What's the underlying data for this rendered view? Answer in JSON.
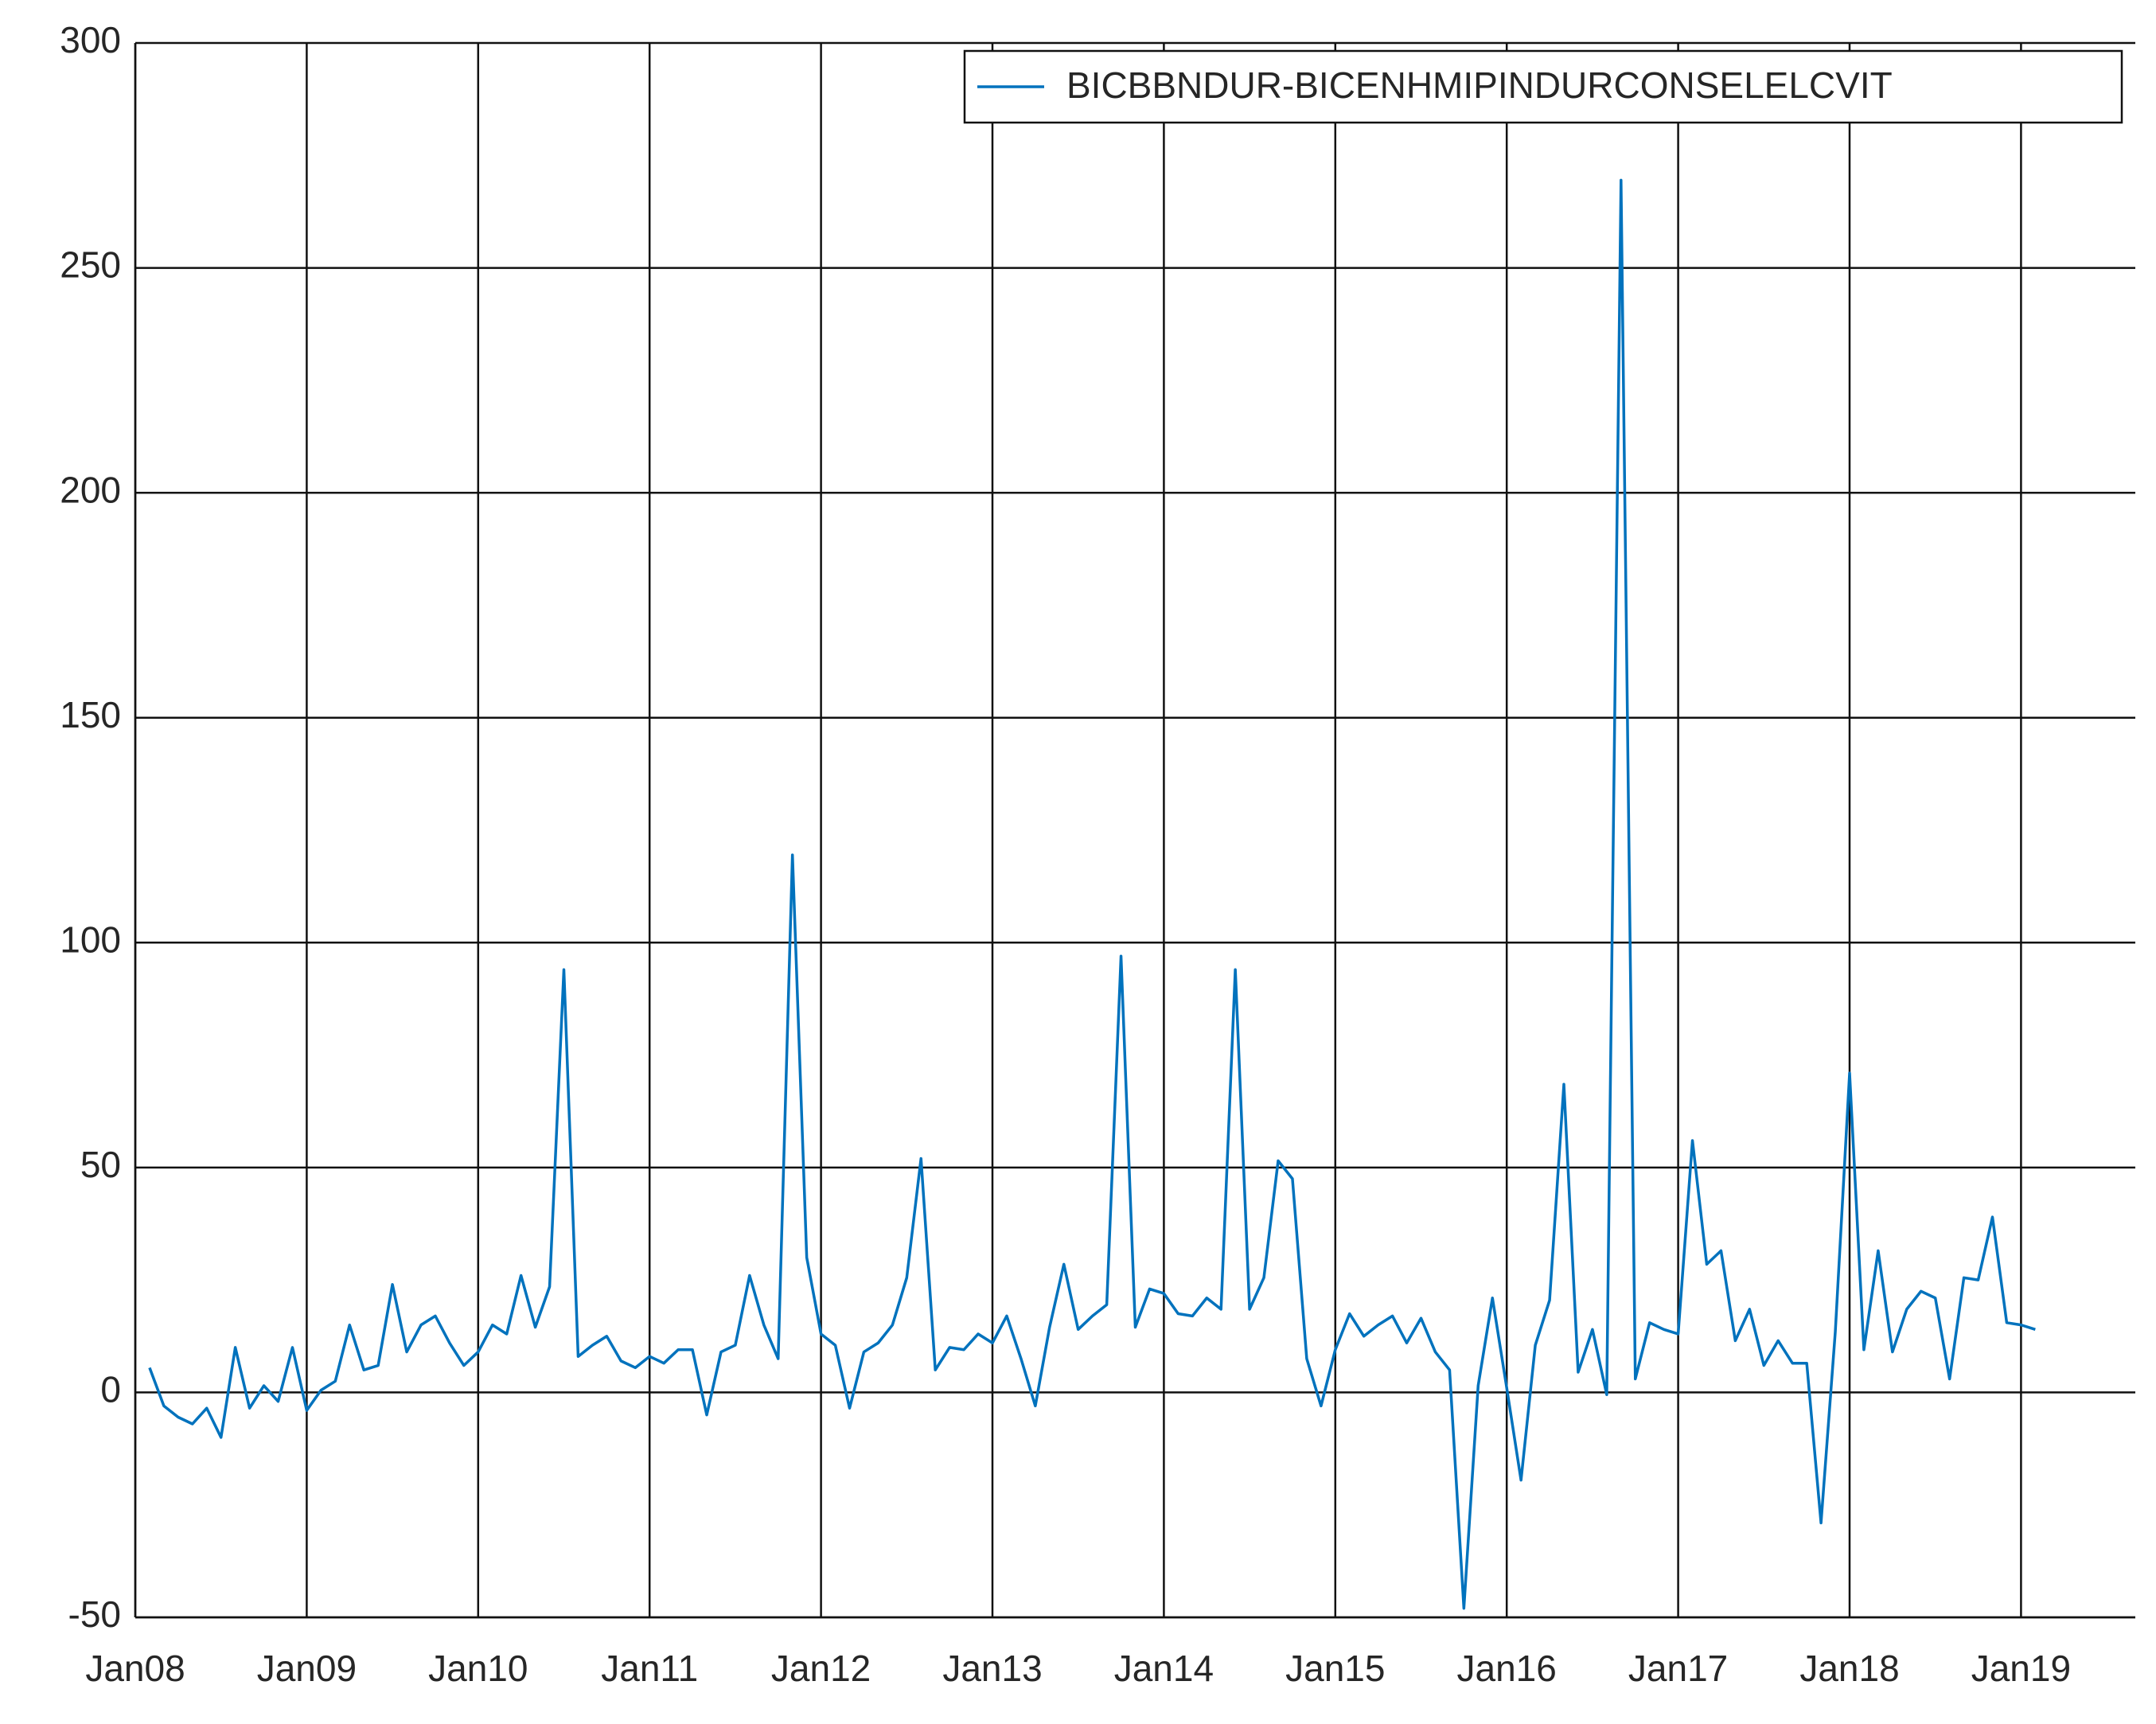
{
  "chart_data": {
    "type": "line",
    "x": [
      "2008-02",
      "2008-03",
      "2008-04",
      "2008-05",
      "2008-06",
      "2008-07",
      "2008-08",
      "2008-09",
      "2008-10",
      "2008-11",
      "2008-12",
      "2009-01",
      "2009-02",
      "2009-03",
      "2009-04",
      "2009-05",
      "2009-06",
      "2009-07",
      "2009-08",
      "2009-09",
      "2009-10",
      "2009-11",
      "2009-12",
      "2010-01",
      "2010-02",
      "2010-03",
      "2010-04",
      "2010-05",
      "2010-06",
      "2010-07",
      "2010-08",
      "2010-09",
      "2010-10",
      "2010-11",
      "2010-12",
      "2011-01",
      "2011-02",
      "2011-03",
      "2011-04",
      "2011-05",
      "2011-06",
      "2011-07",
      "2011-08",
      "2011-09",
      "2011-10",
      "2011-11",
      "2011-12",
      "2012-01",
      "2012-02",
      "2012-03",
      "2012-04",
      "2012-05",
      "2012-06",
      "2012-07",
      "2012-08",
      "2012-09",
      "2012-10",
      "2012-11",
      "2012-12",
      "2013-01",
      "2013-02",
      "2013-03",
      "2013-04",
      "2013-05",
      "2013-06",
      "2013-07",
      "2013-08",
      "2013-09",
      "2013-10",
      "2013-11",
      "2013-12",
      "2014-01",
      "2014-02",
      "2014-03",
      "2014-04",
      "2014-05",
      "2014-06",
      "2014-07",
      "2014-08",
      "2014-09",
      "2014-10",
      "2014-11",
      "2014-12",
      "2015-01",
      "2015-02",
      "2015-03",
      "2015-04",
      "2015-05",
      "2015-06",
      "2015-07",
      "2015-08",
      "2015-09",
      "2015-10",
      "2015-11",
      "2015-12",
      "2016-01",
      "2016-02",
      "2016-03",
      "2016-04",
      "2016-05",
      "2016-06",
      "2016-07",
      "2016-08",
      "2016-09",
      "2016-10",
      "2016-11",
      "2016-12",
      "2017-01",
      "2017-02",
      "2017-03",
      "2017-04",
      "2017-05",
      "2017-06",
      "2017-07",
      "2017-08",
      "2017-09",
      "2017-10",
      "2017-11",
      "2017-12",
      "2018-01",
      "2018-02",
      "2018-03",
      "2018-04",
      "2018-05",
      "2018-06",
      "2018-07",
      "2018-08",
      "2018-09",
      "2018-10",
      "2018-11",
      "2018-12",
      "2019-01",
      "2019-02"
    ],
    "series": [
      {
        "name": "BICBBNDUR-BICENHMIPINDURCONSELELCVIT",
        "color": "#0072bd",
        "values": [
          5.5,
          -3,
          -5.5,
          -7,
          -3.5,
          -10,
          10,
          -3.5,
          1.5,
          -2,
          10,
          -4,
          0.5,
          2.5,
          15,
          5,
          6,
          24,
          9,
          15,
          17,
          11,
          6,
          9,
          15,
          13,
          26,
          14.5,
          23.5,
          94,
          8,
          10.5,
          12.5,
          7,
          5.5,
          8,
          6.5,
          9.5,
          9.5,
          -5,
          9,
          10.5,
          26,
          15,
          7.5,
          119.5,
          30,
          13,
          10.5,
          -3.5,
          9,
          11,
          15,
          25.5,
          52,
          5,
          10,
          9.5,
          13,
          11,
          17,
          7.5,
          -3,
          14.5,
          28.5,
          14,
          17,
          19.5,
          97,
          14.5,
          23,
          22,
          17.5,
          17,
          21,
          18.5,
          94,
          18.5,
          25.5,
          51.5,
          47.5,
          7.5,
          -3,
          9.5,
          17.5,
          12.5,
          15,
          17,
          11,
          16.5,
          9,
          5,
          -48,
          1.5,
          21,
          1,
          -19.5,
          10.5,
          20.5,
          68.5,
          4.5,
          14,
          -0.5,
          269.5,
          3,
          15.5,
          14,
          13,
          56,
          28.5,
          31.5,
          11.5,
          18.5,
          6,
          11.5,
          6.5,
          6.5,
          -29,
          13.5,
          71,
          9.5,
          31.5,
          9,
          18.5,
          22.5,
          21,
          3,
          25.5,
          25,
          39,
          15.5,
          15,
          14
        ]
      }
    ],
    "xlim": [
      "2008-01",
      "2019-09"
    ],
    "xticks": [
      {
        "value": "2008-01",
        "label": "Jan08"
      },
      {
        "value": "2009-01",
        "label": "Jan09"
      },
      {
        "value": "2010-01",
        "label": "Jan10"
      },
      {
        "value": "2011-01",
        "label": "Jan11"
      },
      {
        "value": "2012-01",
        "label": "Jan12"
      },
      {
        "value": "2013-01",
        "label": "Jan13"
      },
      {
        "value": "2014-01",
        "label": "Jan14"
      },
      {
        "value": "2015-01",
        "label": "Jan15"
      },
      {
        "value": "2016-01",
        "label": "Jan16"
      },
      {
        "value": "2017-01",
        "label": "Jan17"
      },
      {
        "value": "2018-01",
        "label": "Jan18"
      },
      {
        "value": "2019-01",
        "label": "Jan19"
      }
    ],
    "ylim": [
      -50,
      300
    ],
    "yticks": [
      -50,
      0,
      50,
      100,
      150,
      200,
      250,
      300
    ],
    "grid": true,
    "legend": "northeast"
  }
}
